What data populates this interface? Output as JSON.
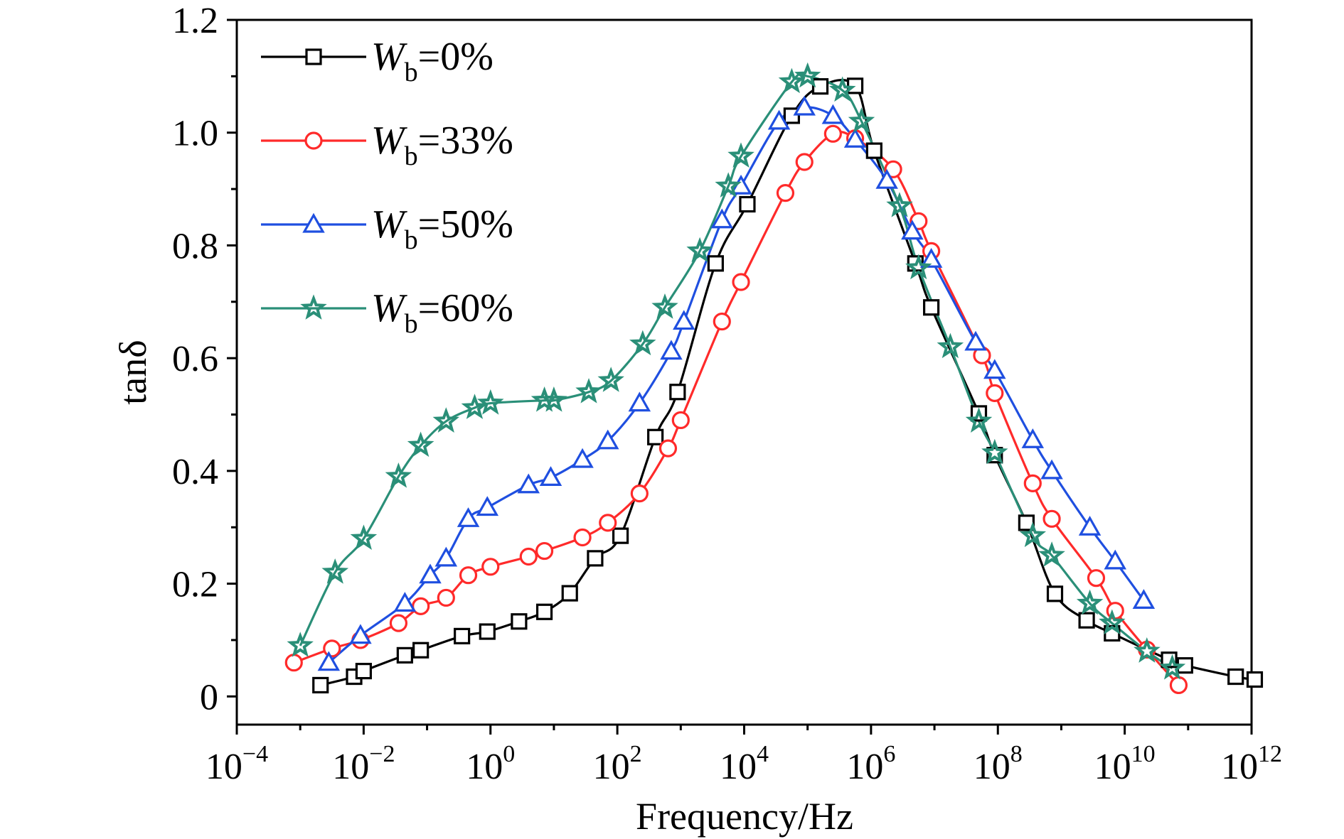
{
  "chart_data": {
    "type": "line",
    "xlabel": "Frequency/Hz",
    "ylabel": "tanδ",
    "xscale": "log",
    "xlim": [
      0.0001,
      1000000000000
    ],
    "ylim": [
      -0.05,
      1.2
    ],
    "x_ticks": [
      {
        "value": 0.0001,
        "base": "10",
        "exp": "−4"
      },
      {
        "value": 0.01,
        "base": "10",
        "exp": "−2"
      },
      {
        "value": 1,
        "base": "10",
        "exp": "0"
      },
      {
        "value": 100,
        "base": "10",
        "exp": "2"
      },
      {
        "value": 10000,
        "base": "10",
        "exp": "4"
      },
      {
        "value": 1000000,
        "base": "10",
        "exp": "6"
      },
      {
        "value": 100000000,
        "base": "10",
        "exp": "8"
      },
      {
        "value": 10000000000,
        "base": "10",
        "exp": "10"
      },
      {
        "value": 1000000000000,
        "base": "10",
        "exp": "12"
      }
    ],
    "y_ticks": [
      {
        "value": 0,
        "label": "0"
      },
      {
        "value": 0.2,
        "label": "0.2"
      },
      {
        "value": 0.4,
        "label": "0.4"
      },
      {
        "value": 0.6,
        "label": "0.6"
      },
      {
        "value": 0.8,
        "label": "0.8"
      },
      {
        "value": 1.0,
        "label": "1.0"
      },
      {
        "value": 1.2,
        "label": "1.2"
      }
    ],
    "grid": false,
    "legend_position": "top-left",
    "series": [
      {
        "name": "W_b=0%",
        "legend": {
          "symbol": "W",
          "subscript": "b",
          "text": "=0%"
        },
        "color": "#000000",
        "marker": "square",
        "log_x": [
          -2.68,
          -2.15,
          -2.0,
          -1.35,
          -1.1,
          -0.45,
          -0.05,
          0.45,
          0.85,
          1.25,
          1.65,
          2.05,
          2.6,
          2.95,
          3.55,
          4.05,
          4.75,
          5.2,
          5.75,
          6.05,
          6.7,
          6.95,
          7.7,
          7.95,
          8.45,
          8.9,
          9.4,
          9.8,
          10.7,
          10.95,
          11.75,
          12.05
        ],
        "values": [
          0.02,
          0.035,
          0.045,
          0.073,
          0.082,
          0.107,
          0.115,
          0.133,
          0.15,
          0.183,
          0.245,
          0.285,
          0.46,
          0.54,
          0.768,
          0.873,
          1.03,
          1.082,
          1.083,
          0.968,
          0.768,
          0.69,
          0.502,
          0.428,
          0.308,
          0.182,
          0.135,
          0.112,
          0.065,
          0.055,
          0.035,
          0.03
        ]
      },
      {
        "name": "W_b=33%",
        "legend": {
          "symbol": "W",
          "subscript": "b",
          "text": "=33%"
        },
        "color": "#ff2a2a",
        "marker": "circle",
        "log_x": [
          -3.1,
          -2.5,
          -2.05,
          -1.45,
          -1.1,
          -0.7,
          -0.35,
          0.0,
          0.6,
          0.85,
          1.45,
          1.85,
          2.35,
          2.8,
          3.0,
          3.65,
          3.95,
          4.65,
          4.95,
          5.4,
          5.75,
          6.35,
          6.75,
          6.95,
          7.75,
          7.95,
          8.55,
          8.85,
          9.55,
          9.85,
          10.35,
          10.85
        ],
        "values": [
          0.06,
          0.085,
          0.1,
          0.13,
          0.16,
          0.175,
          0.215,
          0.23,
          0.248,
          0.258,
          0.282,
          0.308,
          0.36,
          0.44,
          0.49,
          0.665,
          0.735,
          0.893,
          0.948,
          0.998,
          0.99,
          0.935,
          0.843,
          0.79,
          0.605,
          0.538,
          0.378,
          0.315,
          0.21,
          0.152,
          0.083,
          0.02
        ]
      },
      {
        "name": "W_b=50%",
        "legend": {
          "symbol": "W",
          "subscript": "b",
          "text": "=50%"
        },
        "color": "#1f4fe0",
        "marker": "triangle",
        "log_x": [
          -2.55,
          -2.05,
          -1.35,
          -0.95,
          -0.7,
          -0.35,
          -0.05,
          0.6,
          0.95,
          1.45,
          1.85,
          2.35,
          2.85,
          3.05,
          3.65,
          3.95,
          4.55,
          4.95,
          5.4,
          5.75,
          6.25,
          6.65,
          6.95,
          7.65,
          7.95,
          8.55,
          8.85,
          9.45,
          9.85,
          10.3
        ],
        "values": [
          0.06,
          0.108,
          0.165,
          0.215,
          0.245,
          0.315,
          0.335,
          0.375,
          0.388,
          0.42,
          0.453,
          0.52,
          0.612,
          0.665,
          0.845,
          0.905,
          1.02,
          1.045,
          1.03,
          0.988,
          0.915,
          0.825,
          0.775,
          0.628,
          0.578,
          0.455,
          0.4,
          0.3,
          0.24,
          0.17
        ]
      },
      {
        "name": "W_b=60%",
        "legend": {
          "symbol": "W",
          "subscript": "b",
          "text": "=60%"
        },
        "color": "#2a8f78",
        "marker": "star",
        "log_x": [
          -3.0,
          -2.45,
          -2.0,
          -1.45,
          -1.1,
          -0.7,
          -0.25,
          0.0,
          0.85,
          1.0,
          1.55,
          1.9,
          2.4,
          2.75,
          3.3,
          3.75,
          3.95,
          4.75,
          5.0,
          5.55,
          5.85,
          6.45,
          6.75,
          7.25,
          7.7,
          7.95,
          8.55,
          8.85,
          9.45,
          9.8,
          10.35,
          10.75
        ],
        "values": [
          0.09,
          0.22,
          0.28,
          0.39,
          0.445,
          0.488,
          0.512,
          0.52,
          0.525,
          0.525,
          0.54,
          0.56,
          0.625,
          0.69,
          0.79,
          0.905,
          0.958,
          1.09,
          1.1,
          1.075,
          1.02,
          0.87,
          0.76,
          0.62,
          0.488,
          0.432,
          0.285,
          0.25,
          0.165,
          0.13,
          0.08,
          0.05
        ]
      }
    ]
  }
}
